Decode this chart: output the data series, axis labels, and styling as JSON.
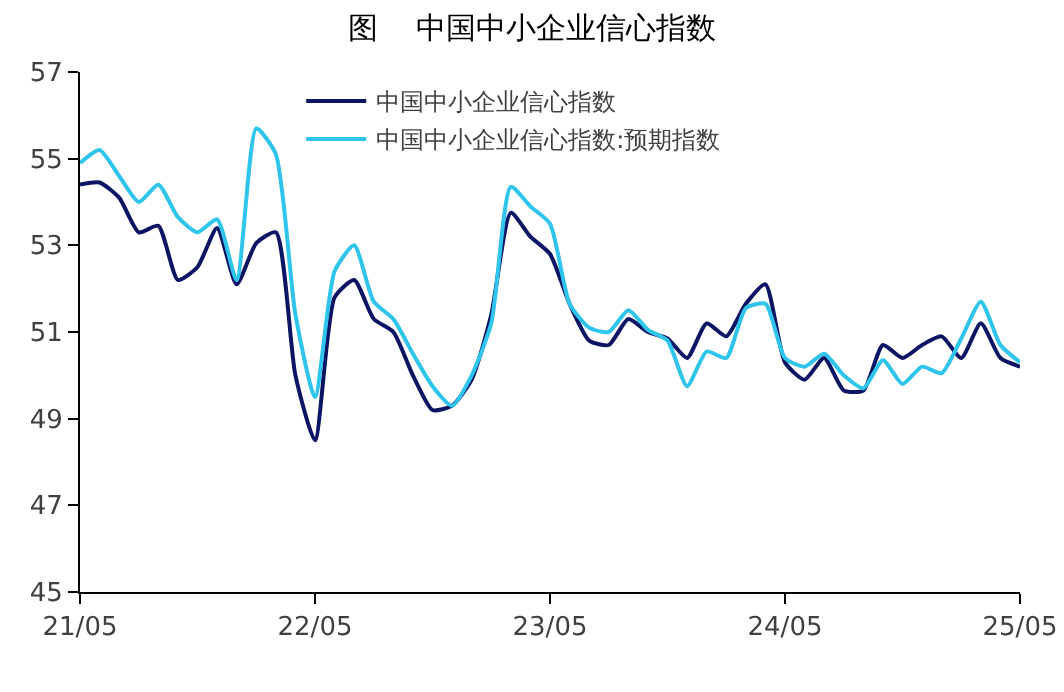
{
  "chart_data": {
    "type": "line",
    "title": "图    中国中小企业信心指数",
    "categories": [
      "21/05",
      null,
      null,
      null,
      null,
      null,
      null,
      null,
      null,
      null,
      null,
      null,
      "22/05",
      null,
      null,
      null,
      null,
      null,
      null,
      null,
      null,
      null,
      null,
      null,
      "23/05",
      null,
      null,
      null,
      null,
      null,
      null,
      null,
      null,
      null,
      null,
      null,
      "24/05",
      null,
      null,
      null,
      null,
      null,
      null,
      null,
      null,
      null,
      null,
      null,
      "25/05"
    ],
    "series": [
      {
        "name": "中国中小企业信心指数",
        "color": "#0c1464",
        "values": [
          54.4,
          54.45,
          54.1,
          53.3,
          53.45,
          52.2,
          52.5,
          53.4,
          52.1,
          53.05,
          53.3,
          50.0,
          48.5,
          51.8,
          52.2,
          51.3,
          51.0,
          50.0,
          49.2,
          49.3,
          49.9,
          51.4,
          53.75,
          53.2,
          52.8,
          51.65,
          50.8,
          50.7,
          51.3,
          51.0,
          50.85,
          50.4,
          51.2,
          50.9,
          51.65,
          52.1,
          50.3,
          49.9,
          50.4,
          49.65,
          49.65,
          50.7,
          50.4,
          50.7,
          50.9,
          50.4,
          51.2,
          50.4,
          50.2
        ]
      },
      {
        "name": "中国中小企业信心指数:预期指数",
        "color": "#2ec4ec",
        "values": [
          54.9,
          55.2,
          54.6,
          54.0,
          54.4,
          53.65,
          53.3,
          53.6,
          52.2,
          55.7,
          55.1,
          51.4,
          49.5,
          52.4,
          53.0,
          51.7,
          51.3,
          50.5,
          49.75,
          49.3,
          50.0,
          51.2,
          54.35,
          53.9,
          53.5,
          51.65,
          51.1,
          51.0,
          51.5,
          51.05,
          50.8,
          49.75,
          50.55,
          50.4,
          51.55,
          51.65,
          50.4,
          50.2,
          50.5,
          50.0,
          49.7,
          50.35,
          49.8,
          50.2,
          50.05,
          50.85,
          51.7,
          50.7,
          50.3
        ]
      }
    ],
    "ylim": [
      45,
      57
    ],
    "yticks": [
      45,
      47,
      49,
      51,
      53,
      55,
      57
    ],
    "grid": false,
    "legend": "top",
    "marker": "none",
    "line_style": "solid"
  }
}
